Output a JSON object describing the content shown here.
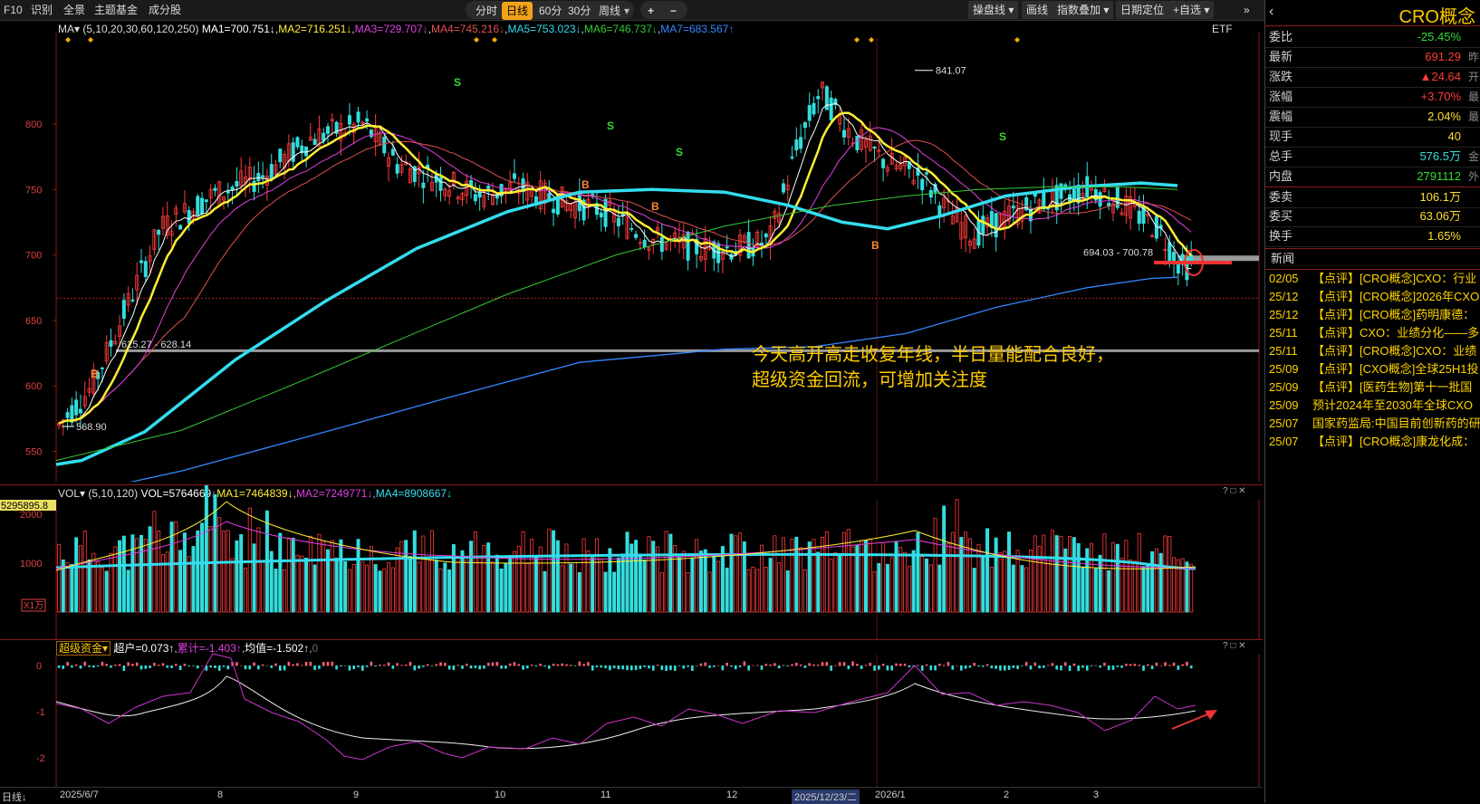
{
  "toolbar": {
    "left_items": [
      "F10",
      "识别",
      "全景",
      "主题基金",
      "成分股"
    ],
    "periods": [
      "分时",
      "日线",
      "60分",
      "30分",
      "周线"
    ],
    "active_period": "日线",
    "zoom_in": "+",
    "zoom_out": "−",
    "right_items": [
      "操盘线",
      "画线",
      "指数叠加",
      "日期定位",
      "自选"
    ],
    "right_item_arrows": [
      "▾",
      "",
      "▾",
      "",
      "▾"
    ],
    "zoom_in_prefix": "+",
    "close": "»"
  },
  "main_chart": {
    "indicator_label": "MA▾",
    "params": "(5,10,20,30,60,120,250)",
    "ma": [
      {
        "label": "MA1=700.751↓",
        "color": "#ffffff"
      },
      {
        "label": "MA2=716.251↓",
        "color": "#ffee33"
      },
      {
        "label": "MA3=729.707↓",
        "color": "#e040e0"
      },
      {
        "label": "MA4=745.216↓",
        "color": "#e05050"
      },
      {
        "label": "MA5=753.023↓",
        "color": "#33ddee"
      },
      {
        "label": "MA6=746.737↓",
        "color": "#33cc33"
      },
      {
        "label": "MA7=683.567↑",
        "color": "#3388ff"
      }
    ],
    "etf_label": "ETF",
    "price_ticks": [
      "800",
      "750",
      "700",
      "650",
      "600",
      "550"
    ],
    "annotations": {
      "high": "841.07",
      "low": "568.90",
      "range1": "625.27 - 628.14",
      "range2": "694.03 - 700.78"
    },
    "note_line1": "今天高开高走收复年线，半日量能配合良好，",
    "note_line2": "超级资金回流，可增加关注度",
    "signals": {
      "B": "B",
      "S": "S"
    }
  },
  "volume_chart": {
    "indicator_label": "VOL▾",
    "params": "(5,10,120)",
    "vol": "VOL=5764669↓",
    "ma1": "MA1=7464839↓",
    "ma2": "MA2=7249771↓",
    "ma4": "MA4=8908667↓",
    "highlight_value": "5295895.8",
    "ticks": [
      "2000",
      "1000"
    ],
    "unit": "X1万"
  },
  "fund_chart": {
    "indicator_label": "超级资金▾",
    "super_label": "超户=0.073↑",
    "cum_label": "累计=-1.403↑",
    "avg_label": "均值=-1.502↑",
    "zero_label": "0",
    "ticks": [
      "0",
      "-1",
      "-2"
    ]
  },
  "x_axis": {
    "corner": "日线",
    "labels": [
      "2025/6/7",
      "8",
      "9",
      "10",
      "11",
      "12",
      "2025/12/23/二",
      "2026/1",
      "2",
      "3"
    ]
  },
  "panel_controls": "? □ ✕",
  "quote": {
    "title": "CRO概念",
    "rows": [
      {
        "label": "委比",
        "value": "-25.45%",
        "color": "#33dd33",
        "unit": ""
      },
      {
        "label": "最新",
        "value": "691.29",
        "color": "#ff3b3b",
        "unit": "昨"
      },
      {
        "label": "涨跌",
        "value": "▲24.64",
        "color": "#ff3b3b",
        "unit": "开"
      },
      {
        "label": "涨幅",
        "value": "+3.70%",
        "color": "#ff3b3b",
        "unit": "最"
      },
      {
        "label": "震幅",
        "value": "2.04%",
        "color": "#ffdd33",
        "unit": "最"
      },
      {
        "label": "现手",
        "value": "40",
        "color": "#ffdd33",
        "unit": ""
      },
      {
        "label": "总手",
        "value": "576.5万",
        "color": "#33dddd",
        "unit": "金"
      },
      {
        "label": "内盘",
        "value": "2791112",
        "color": "#33dd33",
        "unit": "外"
      },
      {
        "label": "委卖",
        "value": "106.1万",
        "color": "#ffdd33",
        "unit": ""
      },
      {
        "label": "委买",
        "value": "63.06万",
        "color": "#ffdd33",
        "unit": ""
      },
      {
        "label": "换手",
        "value": "1.65%",
        "color": "#ffdd33",
        "unit": ""
      }
    ],
    "news_header": "新闻",
    "news": [
      {
        "date": "02/05",
        "text": "【点评】[CRO概念]CXO：行业"
      },
      {
        "date": "25/12",
        "text": "【点评】[CRO概念]2026年CXO"
      },
      {
        "date": "25/12",
        "text": "【点评】[CRO概念]药明康德："
      },
      {
        "date": "25/11",
        "text": "【点评】CXO：业绩分化——多"
      },
      {
        "date": "25/11",
        "text": "【点评】[CRO概念]CXO：业绩"
      },
      {
        "date": "25/09",
        "text": "【点评】[CXO概念]全球25H1投"
      },
      {
        "date": "25/09",
        "text": "【点评】[医药生物]第十一批国"
      },
      {
        "date": "25/09",
        "text": "预计2024年至2030年全球CXO"
      },
      {
        "date": "25/07",
        "text": "国家药监局:中国目前创新药的研"
      },
      {
        "date": "25/07",
        "text": "【点评】[CRO概念]康龙化成："
      }
    ]
  },
  "colors": {
    "up": "#ff3b3b",
    "down": "#33dddd",
    "ma5": "#ffffff",
    "ma10": "#ffee33",
    "ma20": "#e040e0",
    "ma30": "#e05050",
    "ma60": "#33ddee",
    "ma120": "#33cc33",
    "ma250": "#3388ff",
    "note": "#ffcc00"
  }
}
